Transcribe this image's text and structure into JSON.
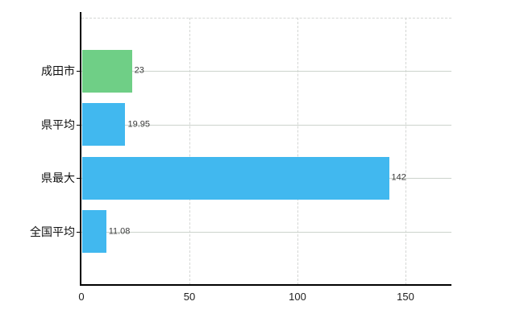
{
  "chart_data": {
    "type": "bar",
    "orientation": "horizontal",
    "title": "",
    "xlabel": "",
    "ylabel": "",
    "categories": [
      "成田市",
      "県平均",
      "県最大",
      "全国平均"
    ],
    "values": [
      23,
      19.95,
      142,
      11.08
    ],
    "value_labels": [
      "23",
      "19.95",
      "142",
      "11.08"
    ],
    "bar_colors": [
      "#6fcf86",
      "#41b8ef",
      "#41b8ef",
      "#41b8ef"
    ],
    "x_ticks": [
      0,
      50,
      100,
      150
    ],
    "x_tick_labels": [
      "0",
      "50",
      "100",
      "150"
    ],
    "xlim": [
      0,
      171
    ],
    "grid": true,
    "legend": "none"
  },
  "colors": {
    "background": "#ffffff",
    "axis": "#000000",
    "gridline": "#d4d6d4",
    "category_gridline": "#ccd3cc",
    "value_label_text": "#3c3c3c",
    "category_label_text": "#111111",
    "tick_label_text": "#1e1e1e",
    "bar_green": "#6fcf86",
    "bar_blue": "#41b8ef"
  }
}
